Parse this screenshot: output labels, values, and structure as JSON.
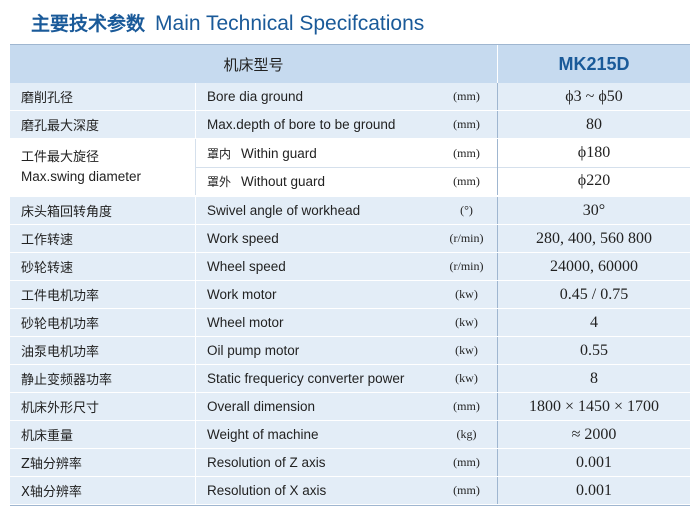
{
  "header": {
    "title_cn": "主要技术参数",
    "title_en": "Main Technical Specifcations"
  },
  "table": {
    "model_label": "机床型号",
    "model_value": "MK215D",
    "rows": [
      {
        "cn": "磨削孔径",
        "en": "Bore dia ground",
        "unit": "(mm)",
        "value": "ϕ3 ~ ϕ50"
      },
      {
        "cn": "磨孔最大深度",
        "en": "Max.depth of bore to be ground",
        "unit": "(mm)",
        "value": "80"
      },
      {
        "cn": "床头箱回转角度",
        "en": "Swivel angle of workhead",
        "unit": "(°)",
        "value": "30°"
      },
      {
        "cn": "工作转速",
        "en": "Work speed",
        "unit": "(r/min)",
        "value": "280, 400, 560 800"
      },
      {
        "cn": "砂轮转速",
        "en": "Wheel speed",
        "unit": "(r/min)",
        "value": "24000, 60000"
      },
      {
        "cn": "工件电机功率",
        "en": "Work motor",
        "unit": "(kw)",
        "value": "0.45 / 0.75"
      },
      {
        "cn": "砂轮电机功率",
        "en": "Wheel motor",
        "unit": "(kw)",
        "value": "4"
      },
      {
        "cn": "油泵电机功率",
        "en": "Oil pump motor",
        "unit": "(kw)",
        "value": "0.55"
      },
      {
        "cn": "静止变频器功率",
        "en": "Static frequericy converter power",
        "unit": "(kw)",
        "value": "8"
      },
      {
        "cn": "机床外形尺寸",
        "en": "Overall dimension",
        "unit": "(mm)",
        "value": "1800 × 1450 × 1700"
      },
      {
        "cn": "机床重量",
        "en": "Weight of machine",
        "unit": "(kg)",
        "value": "≈ 2000"
      },
      {
        "cn": "Z轴分辨率",
        "en": "Resolution of Z axis",
        "unit": "(mm)",
        "value": "0.001"
      },
      {
        "cn": "X轴分辨率",
        "en": "Resolution of X axis",
        "unit": "(mm)",
        "value": "0.001"
      }
    ],
    "swing": {
      "cn": "工件最大旋径",
      "en": "Max.swing diameter",
      "within": {
        "pre": "罩内",
        "en": "Within guard",
        "unit": "(mm)",
        "value": "ϕ180"
      },
      "without": {
        "pre": "罩外",
        "en": "Without guard",
        "unit": "(mm)",
        "value": "ϕ220"
      }
    }
  }
}
